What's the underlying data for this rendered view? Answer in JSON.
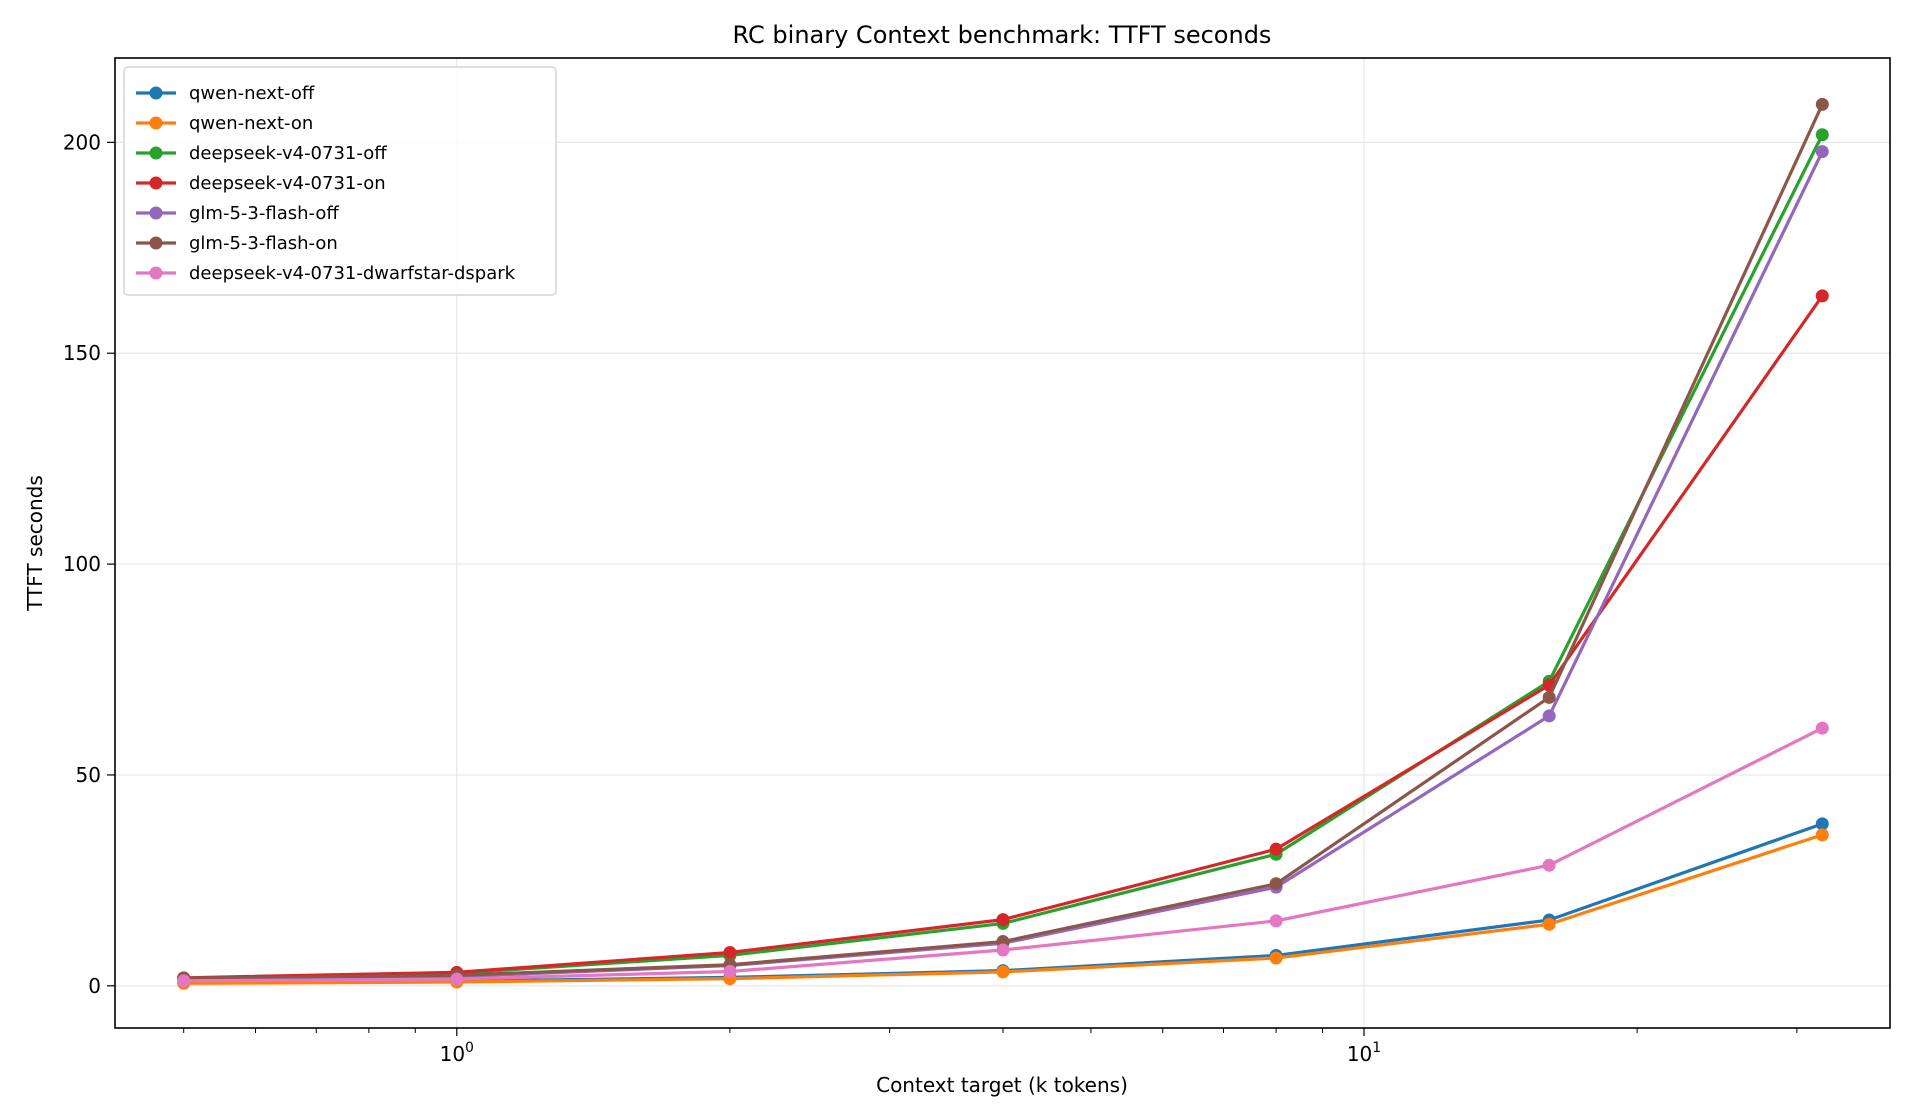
{
  "chart_data": {
    "type": "line",
    "title": "RC binary Context benchmark: TTFT seconds",
    "xlabel": "Context target (k tokens)",
    "ylabel": "TTFT seconds",
    "xscale": "log",
    "xlim": [
      0.42,
      38
    ],
    "ylim": [
      -10,
      220
    ],
    "x_ticks": [
      {
        "value": 1,
        "base": "10",
        "exp": "0"
      },
      {
        "value": 10,
        "base": "10",
        "exp": "1"
      }
    ],
    "y_ticks": [
      0,
      50,
      100,
      150,
      200
    ],
    "grid": true,
    "legend_position": "top-left",
    "x": [
      0.5,
      1,
      2,
      4,
      8,
      16,
      32
    ],
    "series": [
      {
        "name": "qwen-next-off",
        "color": "#1f77b4",
        "values": [
          0.8,
          1.1,
          2.0,
          3.6,
          7.2,
          15.6,
          38.4
        ]
      },
      {
        "name": "qwen-next-on",
        "color": "#ff7f0e",
        "values": [
          0.6,
          0.9,
          1.7,
          3.3,
          6.6,
          14.6,
          35.8
        ]
      },
      {
        "name": "deepseek-v4-0731-off",
        "color": "#2ca02c",
        "values": [
          1.8,
          3.0,
          7.2,
          14.8,
          31.2,
          72.2,
          201.8
        ]
      },
      {
        "name": "deepseek-v4-0731-on",
        "color": "#d62728",
        "values": [
          1.9,
          3.2,
          7.9,
          15.7,
          32.4,
          71.3,
          163.6
        ]
      },
      {
        "name": "glm-5-3-flash-off",
        "color": "#9467bd",
        "values": [
          1.7,
          2.2,
          4.8,
          10.1,
          23.4,
          64.0,
          197.8
        ]
      },
      {
        "name": "glm-5-3-flash-on",
        "color": "#8c564b",
        "values": [
          1.8,
          2.5,
          5.0,
          10.5,
          24.2,
          68.4,
          209.0
        ]
      },
      {
        "name": "deepseek-v4-0731-dwarfstar-dspark",
        "color": "#e377c2",
        "values": [
          1.2,
          1.6,
          3.4,
          8.5,
          15.4,
          28.6,
          61.1
        ]
      }
    ]
  }
}
